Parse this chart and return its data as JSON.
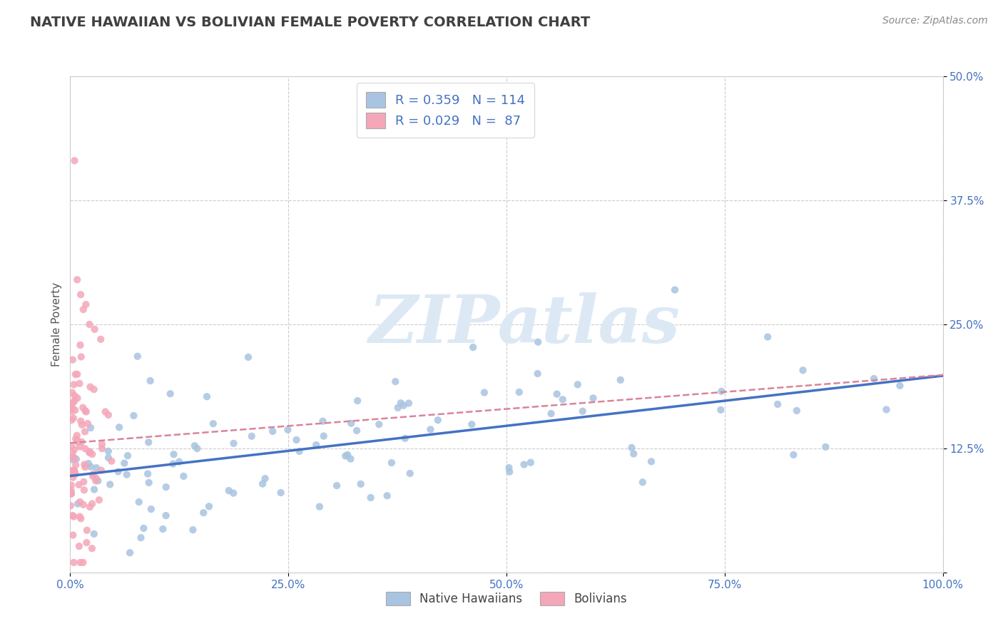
{
  "title": "NATIVE HAWAIIAN VS BOLIVIAN FEMALE POVERTY CORRELATION CHART",
  "source": "Source: ZipAtlas.com",
  "xlabel": "",
  "ylabel": "Female Poverty",
  "xlim": [
    0,
    1.0
  ],
  "ylim": [
    0,
    0.5
  ],
  "xticks": [
    0.0,
    0.25,
    0.5,
    0.75,
    1.0
  ],
  "xticklabels": [
    "0.0%",
    "25.0%",
    "50.0%",
    "75.0%",
    "100.0%"
  ],
  "yticks": [
    0.0,
    0.125,
    0.25,
    0.375,
    0.5
  ],
  "yticklabels": [
    "",
    "12.5%",
    "25.0%",
    "37.5%",
    "50.0%"
  ],
  "native_hawaiian_color": "#a8c4e0",
  "bolivian_color": "#f4a7b9",
  "native_hawaiian_line_color": "#4472c4",
  "bolivian_line_color": "#d9849a",
  "legend_text_color": "#4472c4",
  "watermark_text": "ZIPatlas",
  "watermark_color": "#dce9f5",
  "background_color": "#ffffff",
  "grid_color": "#cccccc",
  "title_color": "#404040",
  "title_fontsize": 14,
  "tick_label_color": "#4472c4",
  "ylabel_color": "#555555",
  "source_color": "#888888",
  "nh_n": 114,
  "bol_n": 87,
  "nh_R": 0.359,
  "bol_R": 0.029,
  "nh_seed": 42,
  "bol_seed": 99,
  "legend_R1": "R = 0.359",
  "legend_N1": "N = 114",
  "legend_R2": "R = 0.029",
  "legend_N2": "N =  87",
  "bottom_legend_labels": [
    "Native Hawaiians",
    "Bolivians"
  ]
}
